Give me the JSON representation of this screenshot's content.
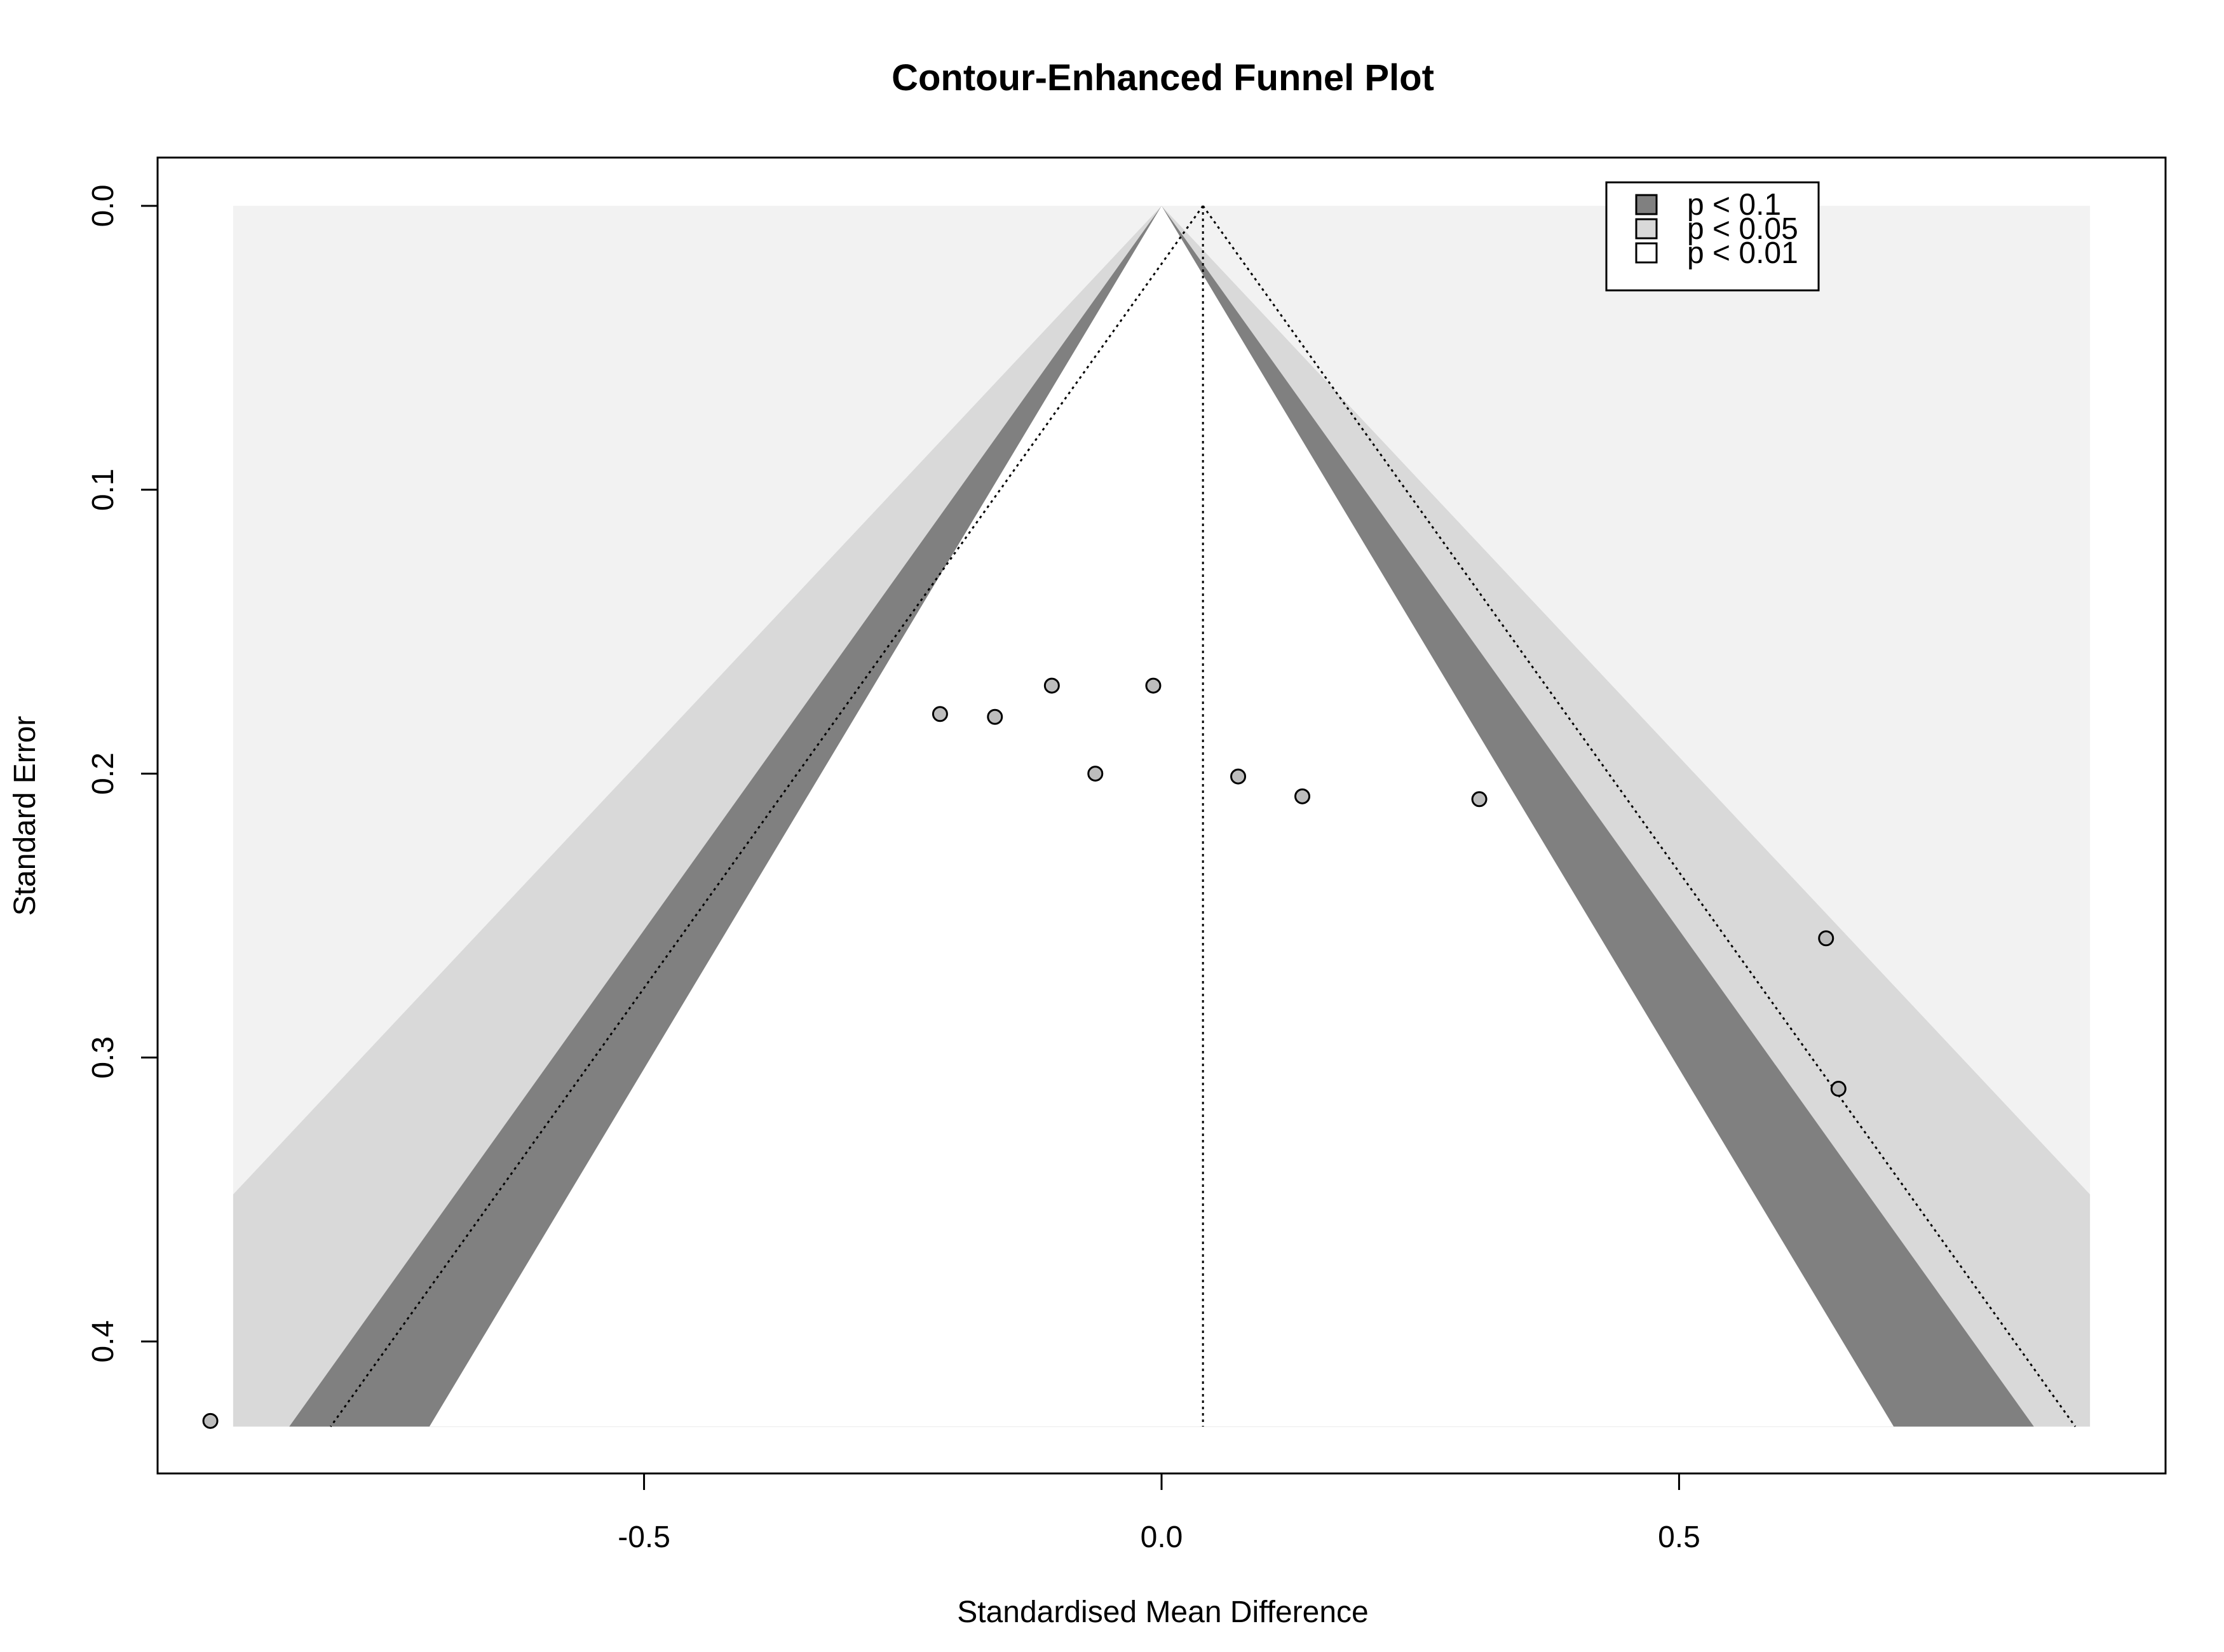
{
  "chart_data": {
    "type": "scatter",
    "title": "Contour-Enhanced Funnel Plot",
    "xlabel": "Standardised Mean Difference",
    "ylabel": "Standard Error",
    "xlim": [
      -0.97,
      0.97
    ],
    "ylim": [
      0.4465,
      -0.017
    ],
    "y_reversed": true,
    "x_ticks": [
      -0.5,
      0.0,
      0.5
    ],
    "x_tick_labels": [
      "-0.5",
      "0.0",
      "0.5"
    ],
    "y_ticks": [
      0.0,
      0.1,
      0.2,
      0.3,
      0.4
    ],
    "y_tick_labels": [
      "0.0",
      "0.1",
      "0.2",
      "0.3",
      "0.4"
    ],
    "se_max": 0.43,
    "x_region": [
      -0.897,
      0.897
    ],
    "fixed_effect_estimate": 0.04,
    "contours": [
      {
        "label": "p < 0.1",
        "z": 1.645,
        "color": "#808080"
      },
      {
        "label": "p < 0.05",
        "z": 1.96,
        "color": "#d9d9d9"
      },
      {
        "label": "p < 0.01",
        "z": 2.576,
        "color": "#f2f2f2"
      }
    ],
    "legend_position": "top-right",
    "points": {
      "x": [
        -0.214,
        -0.161,
        -0.106,
        -0.064,
        -0.008,
        0.074,
        0.136,
        0.307,
        0.642,
        0.654,
        -0.919
      ],
      "y": [
        0.179,
        0.18,
        0.169,
        0.2,
        0.169,
        0.201,
        0.208,
        0.209,
        0.258,
        0.311,
        0.428
      ]
    },
    "point_fill": "#bdbdbd",
    "grid": false
  }
}
